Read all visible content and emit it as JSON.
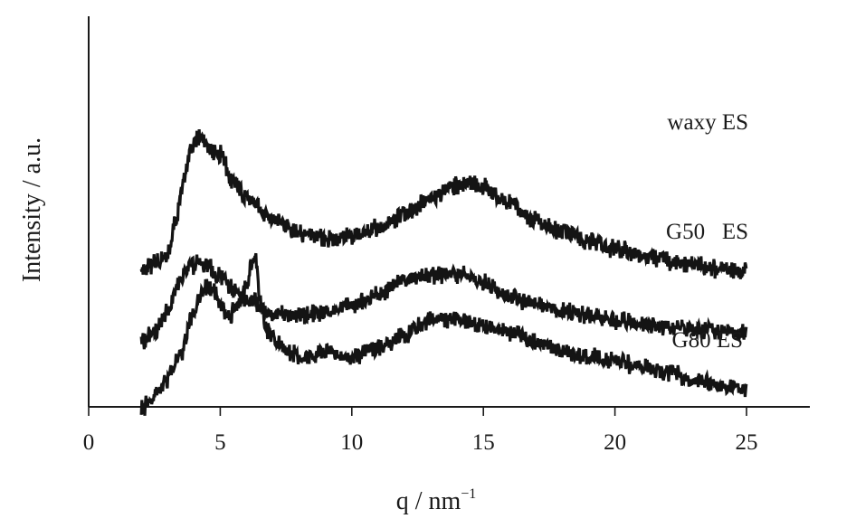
{
  "chart_data": {
    "type": "line",
    "xlabel": "q / nm",
    "xlabel_superscript": "−1",
    "ylabel": "Intensity / a.u.",
    "xlim": [
      0,
      27.5
    ],
    "x_ticks": [
      0,
      5,
      10,
      15,
      20,
      25
    ],
    "y_ticks": [],
    "grid": false,
    "legend": "none",
    "y_units": "arbitrary (curves vertically offset)",
    "series": [
      {
        "name": "waxy ES",
        "color": "#141414",
        "x": [
          2.0,
          2.5,
          3.0,
          3.3,
          3.6,
          3.9,
          4.2,
          4.6,
          5.0,
          5.5,
          6.0,
          7.0,
          8.0,
          9.0,
          10.0,
          11.0,
          12.0,
          13.0,
          14.0,
          14.5,
          15.0,
          16.0,
          17.0,
          18.0,
          19.0,
          20.0,
          21.0,
          22.0,
          23.0,
          24.0,
          25.0
        ],
        "y": [
          7.1,
          7.6,
          8.3,
          10.4,
          13.0,
          15.3,
          16.0,
          15.1,
          14.9,
          13.1,
          12.0,
          10.6,
          9.6,
          9.3,
          9.5,
          10.0,
          10.9,
          12.0,
          12.8,
          13.0,
          12.7,
          11.6,
          10.5,
          9.7,
          9.1,
          8.6,
          8.2,
          7.8,
          7.5,
          7.3,
          7.1
        ]
      },
      {
        "name": "G50   ES",
        "color": "#141414",
        "x": [
          2.0,
          2.5,
          3.0,
          3.4,
          3.8,
          4.2,
          4.6,
          5.0,
          5.5,
          6.0,
          7.0,
          8.0,
          9.0,
          10.0,
          11.0,
          12.0,
          13.0,
          14.0,
          14.5,
          15.0,
          16.0,
          17.0,
          18.0,
          19.0,
          20.0,
          21.0,
          22.0,
          23.0,
          24.0,
          25.0
        ],
        "y": [
          2.5,
          3.0,
          4.5,
          6.3,
          7.4,
          7.6,
          7.3,
          6.7,
          6.0,
          5.2,
          4.3,
          4.2,
          4.4,
          4.8,
          5.6,
          6.5,
          6.9,
          6.9,
          6.8,
          6.3,
          5.5,
          4.9,
          4.5,
          4.2,
          3.9,
          3.7,
          3.5,
          3.3,
          3.2,
          3.1
        ]
      },
      {
        "name": "G80 ES",
        "color": "#141414",
        "x": [
          2.0,
          2.5,
          3.0,
          3.5,
          3.9,
          4.2,
          4.5,
          4.7,
          5.0,
          5.3,
          5.7,
          6.0,
          6.2,
          6.35,
          6.5,
          6.8,
          7.2,
          7.7,
          8.0,
          9.0,
          10.0,
          11.0,
          12.0,
          13.0,
          14.0,
          14.5,
          15.0,
          16.0,
          17.0,
          18.0,
          19.0,
          20.0,
          21.0,
          22.0,
          23.0,
          24.0,
          25.0
        ],
        "y": [
          -1.9,
          -1.2,
          0.0,
          1.6,
          4.0,
          5.3,
          6.2,
          6.0,
          4.9,
          4.2,
          4.9,
          6.3,
          7.7,
          8.0,
          5.3,
          3.3,
          2.4,
          1.8,
          1.2,
          1.8,
          1.4,
          2.0,
          2.9,
          3.9,
          3.9,
          3.8,
          3.4,
          3.1,
          2.5,
          1.9,
          1.5,
          1.2,
          0.8,
          0.4,
          0.0,
          -0.4,
          -0.8
        ]
      }
    ]
  }
}
